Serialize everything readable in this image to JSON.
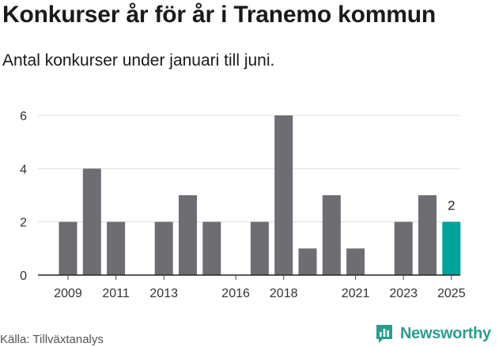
{
  "header": {
    "title": "Konkurser år för år i Tranemo kommun",
    "subtitle": "Antal konkurser under januari till juni."
  },
  "footer": {
    "source": "Källa: Tillväxtanalys",
    "brand": "Newsworthy"
  },
  "colors": {
    "bar": "#6e6d73",
    "highlight": "#00a397",
    "grid": "#dddddd",
    "brand": "#2a9d8f"
  },
  "icons": {
    "brand_logo": "bar-chart-logo-icon"
  },
  "chart_data": {
    "type": "bar",
    "title": "Konkurser år för år i Tranemo kommun",
    "subtitle": "Antal konkurser under januari till juni.",
    "xlabel": "",
    "ylabel": "",
    "categories": [
      "2009",
      "2010",
      "2011",
      "2012",
      "2013",
      "2014",
      "2015",
      "2016",
      "2017",
      "2018",
      "2019",
      "2020",
      "2021",
      "2022",
      "2023",
      "2024",
      "2025"
    ],
    "values": [
      2,
      4,
      2,
      0,
      2,
      3,
      2,
      0,
      2,
      6,
      1,
      3,
      1,
      0,
      2,
      3,
      2
    ],
    "x_tick_labels": [
      "2009",
      "2011",
      "2013",
      "2016",
      "2018",
      "2021",
      "2023",
      "2025"
    ],
    "y_ticks": [
      0,
      2,
      4,
      6
    ],
    "ylim": [
      0,
      6
    ],
    "grid": true,
    "highlight_category": "2025",
    "data_labels": [
      {
        "category": "2025",
        "text": "2"
      }
    ]
  }
}
